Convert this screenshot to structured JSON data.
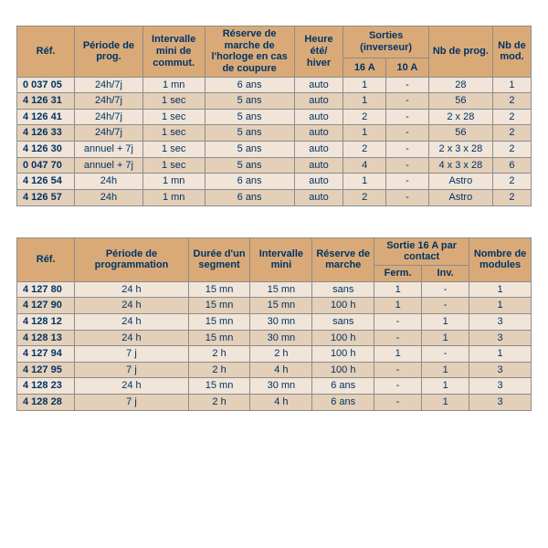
{
  "colors": {
    "header": "#d9aa78",
    "rowA": "#f0e5d8",
    "rowB": "#e4cfb8",
    "border": "#8c8c8c",
    "text": "#003366"
  },
  "table1": {
    "columns": {
      "ref": "Réf.",
      "periode": "Période de prog.",
      "intervalle": "Intervalle mini de commut.",
      "reserve": "Réserve de marche de l'horloge en cas de coupure",
      "heure": "Heure été/ hiver",
      "sorties": "Sorties (inverseur)",
      "s16": "16 A",
      "s10": "10 A",
      "nbprog": "Nb de prog.",
      "nbmod": "Nb de mod."
    },
    "rows": [
      {
        "ref": "0 037 05",
        "periode": "24h/7j",
        "interv": "1 mn",
        "reserve": "6 ans",
        "heure": "auto",
        "s16": "1",
        "s10": "-",
        "prog": "28",
        "mod": "1"
      },
      {
        "ref": "4 126 31",
        "periode": "24h/7j",
        "interv": "1 sec",
        "reserve": "5 ans",
        "heure": "auto",
        "s16": "1",
        "s10": "-",
        "prog": "56",
        "mod": "2"
      },
      {
        "ref": "4 126 41",
        "periode": "24h/7j",
        "interv": "1 sec",
        "reserve": "5 ans",
        "heure": "auto",
        "s16": "2",
        "s10": "-",
        "prog": "2 x 28",
        "mod": "2"
      },
      {
        "ref": "4 126 33",
        "periode": "24h/7j",
        "interv": "1 sec",
        "reserve": "5 ans",
        "heure": "auto",
        "s16": "1",
        "s10": "-",
        "prog": "56",
        "mod": "2"
      },
      {
        "ref": "4 126 30",
        "periode": "annuel + 7j",
        "interv": "1 sec",
        "reserve": "5 ans",
        "heure": "auto",
        "s16": "2",
        "s10": "-",
        "prog": "2 x 3 x 28",
        "mod": "2"
      },
      {
        "ref": "0 047 70",
        "periode": "annuel + 7j",
        "interv": "1 sec",
        "reserve": "5 ans",
        "heure": "auto",
        "s16": "4",
        "s10": "-",
        "prog": "4 x 3 x 28",
        "mod": "6"
      },
      {
        "ref": "4 126 54",
        "periode": "24h",
        "interv": "1 mn",
        "reserve": "6 ans",
        "heure": "auto",
        "s16": "1",
        "s10": "-",
        "prog": "Astro",
        "mod": "2"
      },
      {
        "ref": "4 126 57",
        "periode": "24h",
        "interv": "1 mn",
        "reserve": "6 ans",
        "heure": "auto",
        "s16": "2",
        "s10": "-",
        "prog": "Astro",
        "mod": "2"
      }
    ]
  },
  "table2": {
    "columns": {
      "ref": "Réf.",
      "periode": "Période de programmation",
      "duree": "Durée d'un segment",
      "intervalle": "Intervalle mini",
      "reserve": "Réserve de marche",
      "sortie": "Sortie 16 A par contact",
      "ferm": "Ferm.",
      "inv": "Inv.",
      "modules": "Nombre de modules"
    },
    "rows": [
      {
        "ref": "4 127 80",
        "periode": "24 h",
        "duree": "15 mn",
        "interv": "15 mn",
        "reserve": "sans",
        "ferm": "1",
        "inv": "-",
        "mod": "1"
      },
      {
        "ref": "4 127 90",
        "periode": "24 h",
        "duree": "15 mn",
        "interv": "15 mn",
        "reserve": "100 h",
        "ferm": "1",
        "inv": "-",
        "mod": "1"
      },
      {
        "ref": "4 128 12",
        "periode": "24 h",
        "duree": "15 mn",
        "interv": "30 mn",
        "reserve": "sans",
        "ferm": "-",
        "inv": "1",
        "mod": "3"
      },
      {
        "ref": "4 128 13",
        "periode": "24 h",
        "duree": "15 mn",
        "interv": "30 mn",
        "reserve": "100 h",
        "ferm": "-",
        "inv": "1",
        "mod": "3"
      },
      {
        "ref": "4 127 94",
        "periode": "7 j",
        "duree": "2 h",
        "interv": "2 h",
        "reserve": "100 h",
        "ferm": "1",
        "inv": "-",
        "mod": "1"
      },
      {
        "ref": "4 127 95",
        "periode": "7 j",
        "duree": "2 h",
        "interv": "4 h",
        "reserve": "100 h",
        "ferm": "-",
        "inv": "1",
        "mod": "3"
      },
      {
        "ref": "4 128 23",
        "periode": "24 h",
        "duree": "15 mn",
        "interv": "30 mn",
        "reserve": "6 ans",
        "ferm": "-",
        "inv": "1",
        "mod": "3"
      },
      {
        "ref": "4 128 28",
        "periode": "7 j",
        "duree": "2 h",
        "interv": "4 h",
        "reserve": "6 ans",
        "ferm": "-",
        "inv": "1",
        "mod": "3"
      }
    ]
  }
}
